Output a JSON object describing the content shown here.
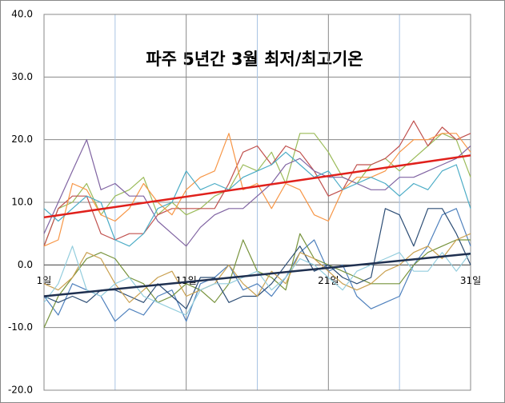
{
  "chart_data": {
    "type": "line",
    "title": "파주 5년간 3월 최저/최고기온",
    "x": [
      1,
      2,
      3,
      4,
      5,
      6,
      7,
      8,
      9,
      10,
      11,
      12,
      13,
      14,
      15,
      16,
      17,
      18,
      19,
      20,
      21,
      22,
      23,
      24,
      25,
      26,
      27,
      28,
      29,
      30,
      31
    ],
    "xlim": [
      1,
      31
    ],
    "xticks": [
      {
        "value": 1,
        "label": "1일"
      },
      {
        "value": 11,
        "label": "11일"
      },
      {
        "value": 21,
        "label": "21일"
      },
      {
        "value": 31,
        "label": "31일"
      }
    ],
    "x_minor_grid": [
      6,
      16,
      26
    ],
    "ylim": [
      -20,
      40
    ],
    "yticks": [
      {
        "value": -20,
        "label": "-20.0"
      },
      {
        "value": -10,
        "label": "-10.0"
      },
      {
        "value": 0,
        "label": "0.0"
      },
      {
        "value": 10,
        "label": "10.0"
      },
      {
        "value": 20,
        "label": "20.0"
      },
      {
        "value": 30,
        "label": "30.0"
      },
      {
        "value": 40,
        "label": "40.0"
      }
    ],
    "grid": true,
    "series": [
      {
        "color": "#9bbb59",
        "values": [
          3,
          9,
          10,
          13,
          8,
          11,
          12,
          14,
          8,
          10,
          8,
          9,
          11,
          12,
          16,
          15,
          18,
          13,
          21,
          21,
          18,
          14,
          13,
          16,
          17,
          15,
          17,
          19,
          21,
          20,
          14
        ]
      },
      {
        "color": "#c0504d",
        "values": [
          3,
          9,
          11,
          11,
          5,
          4,
          5,
          5,
          8,
          9,
          9,
          9,
          9,
          13,
          18,
          19,
          16,
          19,
          18,
          15,
          11,
          12,
          16,
          16,
          17,
          19,
          23,
          19,
          22,
          20,
          21
        ]
      },
      {
        "color": "#f79646",
        "values": [
          3,
          4,
          13,
          12,
          8,
          7,
          9,
          13,
          10,
          8,
          12,
          14,
          15,
          21,
          12,
          13,
          9,
          13,
          12,
          8,
          7,
          12,
          14,
          14,
          15,
          18,
          20,
          20,
          21,
          21,
          18
        ]
      },
      {
        "color": "#8064a2",
        "values": [
          5,
          10,
          15,
          20,
          12,
          13,
          11,
          11,
          7,
          5,
          3,
          6,
          8,
          9,
          9,
          11,
          13,
          16,
          17,
          15,
          14,
          14,
          13,
          12,
          12,
          14,
          14,
          15,
          16,
          17,
          19
        ]
      },
      {
        "color": "#4bacc6",
        "values": [
          9,
          7,
          9,
          11,
          10,
          4,
          3,
          5,
          9,
          10,
          15,
          12,
          13,
          12,
          14,
          15,
          16,
          18,
          16,
          14,
          15,
          12,
          13,
          14,
          13,
          11,
          13,
          12,
          15,
          16,
          9
        ]
      },
      {
        "color": "#4f81bd",
        "values": [
          -5,
          -8,
          -3,
          -4,
          -5,
          -9,
          -7,
          -8,
          -5,
          -4,
          -9,
          -3,
          -2,
          0,
          -4,
          -3,
          -5,
          -2,
          2,
          4,
          -1,
          0,
          -5,
          -7,
          -6,
          -5,
          0,
          3,
          8,
          9,
          3
        ]
      },
      {
        "color": "#77933c",
        "values": [
          -10,
          -5,
          -2,
          1,
          2,
          1,
          -2,
          -3,
          -6,
          -5,
          -3,
          -4,
          -6,
          -3,
          4,
          -1,
          -2,
          -4,
          5,
          1,
          0,
          -1,
          -2,
          -3,
          -3,
          -3,
          0,
          2,
          3,
          4,
          4
        ]
      },
      {
        "color": "#2c4d75",
        "values": [
          -5,
          -6,
          -5,
          -6,
          -4,
          -4,
          -5,
          -6,
          -3,
          -5,
          -7,
          -2,
          -2,
          -6,
          -5,
          -5,
          -3,
          0,
          3,
          -1,
          0,
          -2,
          -3,
          -2,
          9,
          8,
          3,
          9,
          9,
          5,
          0
        ]
      },
      {
        "color": "#c9a04f",
        "values": [
          -3,
          -4,
          -2,
          2,
          1,
          -3,
          -6,
          -4,
          -2,
          -1,
          -5,
          -4,
          -3,
          0,
          -3,
          -5,
          -1,
          -3,
          2,
          1,
          -1,
          -3,
          -4,
          -3,
          -1,
          0,
          2,
          3,
          1,
          4,
          5
        ]
      },
      {
        "color": "#93cddd",
        "values": [
          -6,
          -3,
          3,
          -4,
          -5,
          -3,
          -2,
          -5,
          -6,
          -7,
          -8,
          -4,
          -3,
          -3,
          -2,
          -1,
          -4,
          -2,
          1,
          0,
          -2,
          -4,
          -1,
          0,
          1,
          2,
          -1,
          -1,
          2,
          -1,
          2
        ]
      },
      {
        "color": "#e0201b",
        "x": [
          1,
          31
        ],
        "values": [
          7.6,
          17.5
        ],
        "line_width": 2.5
      },
      {
        "color": "#1f3050",
        "x": [
          1,
          31
        ],
        "values": [
          -5,
          1.8
        ],
        "line_width": 2.5
      }
    ]
  }
}
